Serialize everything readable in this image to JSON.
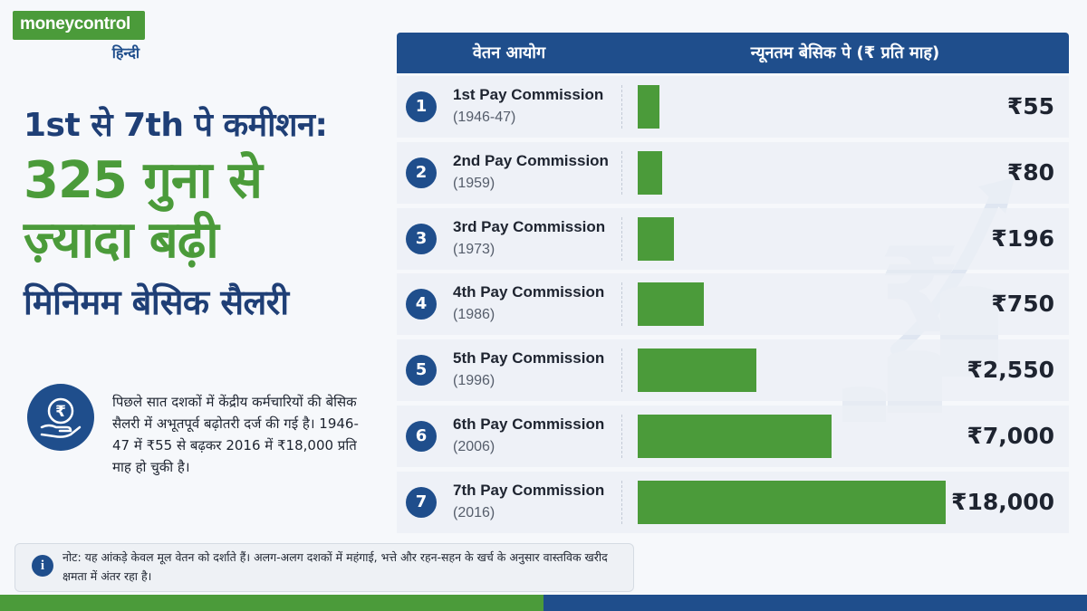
{
  "logo": {
    "brand": "moneycontrol",
    "sub": "हिन्दी"
  },
  "headline": {
    "line1": "1st से 7th पे कमीशन:",
    "line2": "325 गुना से",
    "line3": "ज़्यादा बढ़ी",
    "line4": "मिनिमम बेसिक सैलरी"
  },
  "description": {
    "icon": "rupee-hand-icon",
    "text": "पिछले सात दशकों में केंद्रीय कर्मचारियों की बेसिक सैलरी में अभूतपूर्व बढ़ोतरी दर्ज की गई है। 1946-47 में ₹55 से बढ़कर 2016 में ₹18,000 प्रति माह हो चुकी है।"
  },
  "note": {
    "icon": "info-icon",
    "text": "नोट: यह आंकड़े केवल मूल वेतन को दर्शाते हैं। अलग-अलग दशकों में महंगाई, भत्ते और रहन-सहन के खर्च के अनुसार वास्तविक खरीद क्षमता में अंतर रहा है।"
  },
  "colors": {
    "green": "#4b9b3a",
    "blue": "#1f4e8c"
  },
  "chart_data": {
    "type": "bar",
    "orientation": "horizontal",
    "header": {
      "col1": "वेतन आयोग",
      "col2": "न्यूनतम बेसिक पे (₹ प्रति माह)"
    },
    "categories": [
      "1st Pay Commission",
      "2nd Pay Commission",
      "3rd Pay Commission",
      "4th Pay Commission",
      "5th Pay Commission",
      "6th Pay Commission",
      "7th Pay Commission"
    ],
    "years": [
      "(1946-47)",
      "(1959)",
      "(1973)",
      "(1986)",
      "(1996)",
      "(2006)",
      "(2016)"
    ],
    "numbers": [
      "1",
      "2",
      "3",
      "4",
      "5",
      "6",
      "7"
    ],
    "values": [
      55,
      80,
      196,
      750,
      2550,
      7000,
      18000
    ],
    "value_labels": [
      "₹55",
      "₹80",
      "₹196",
      "₹750",
      "₹2,550",
      "₹7,000",
      "₹18,000"
    ],
    "bar_color": "#4b9b3a"
  }
}
